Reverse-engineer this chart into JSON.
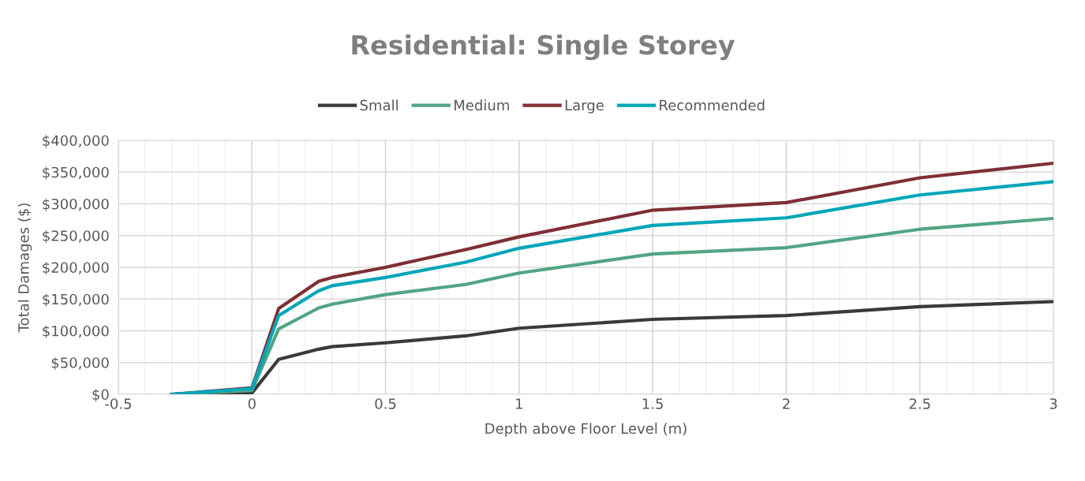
{
  "chart_data": {
    "type": "line",
    "title": "Residential: Single Storey",
    "xlabel": "Depth above Floor Level (m)",
    "ylabel": "Total Damages ($)",
    "x": [
      -0.3,
      0,
      0.1,
      0.25,
      0.3,
      0.5,
      0.8,
      1,
      1.5,
      2,
      2.5,
      3
    ],
    "series": [
      {
        "name": "Small",
        "color": "#3a3a3a",
        "values": [
          0,
          2000,
          55000,
          71000,
          75000,
          81000,
          92000,
          104000,
          118000,
          124000,
          138000,
          146000
        ]
      },
      {
        "name": "Medium",
        "color": "#52a583",
        "values": [
          0,
          6000,
          103000,
          136000,
          142000,
          157000,
          173000,
          191000,
          221000,
          231000,
          260000,
          277000
        ]
      },
      {
        "name": "Large",
        "color": "#7f2f35",
        "values": [
          0,
          10000,
          135000,
          178000,
          184000,
          200000,
          228000,
          248000,
          290000,
          302000,
          341000,
          364000
        ]
      },
      {
        "name": "Recommended",
        "color": "#00a6b8",
        "values": [
          0,
          9000,
          124000,
          163000,
          171000,
          184000,
          208000,
          230000,
          266000,
          278000,
          314000,
          335000
        ]
      }
    ],
    "xlim": [
      -0.5,
      3
    ],
    "xticks": [
      -0.5,
      0,
      0.5,
      1,
      1.5,
      2,
      2.5,
      3
    ],
    "ylim": [
      0,
      400000
    ],
    "yticks": [
      {
        "value": 0,
        "label": "$0"
      },
      {
        "value": 50000,
        "label": "$50,000"
      },
      {
        "value": 100000,
        "label": "$100,000"
      },
      {
        "value": 150000,
        "label": "$150,000"
      },
      {
        "value": 200000,
        "label": "$200,000"
      },
      {
        "value": 250000,
        "label": "$250,000"
      },
      {
        "value": 300000,
        "label": "$300,000"
      },
      {
        "value": 350000,
        "label": "$350,000"
      },
      {
        "value": 400000,
        "label": "$400,000"
      }
    ],
    "grid": true,
    "legend": "top",
    "marker": "none",
    "line_style": "solid"
  }
}
